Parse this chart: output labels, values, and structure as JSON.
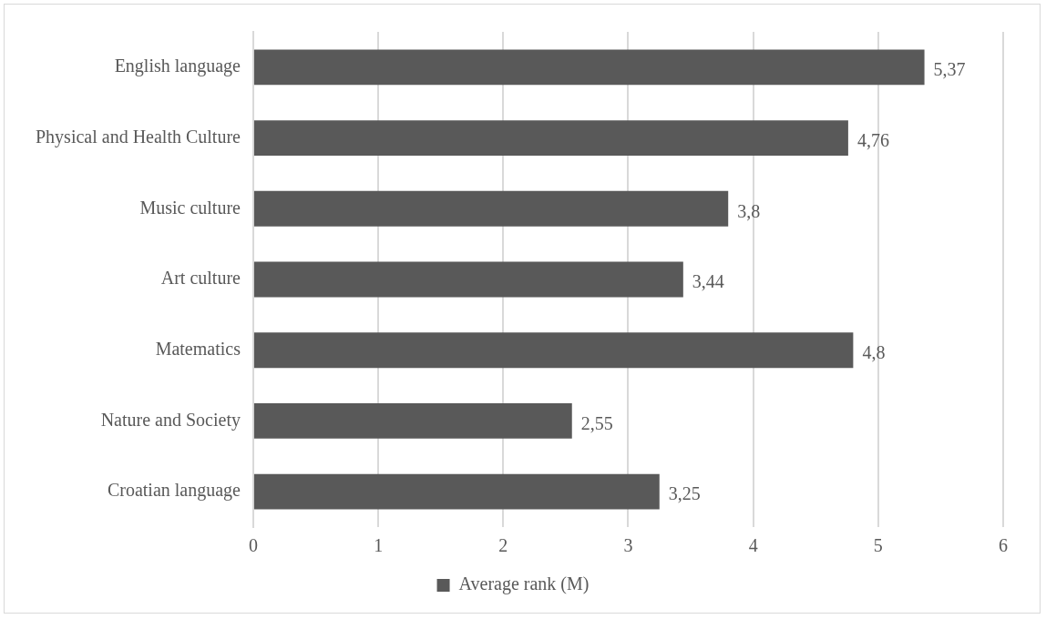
{
  "chart_data": {
    "type": "bar",
    "orientation": "horizontal",
    "categories": [
      "English language",
      "Physical and Health Culture",
      "Music culture",
      "Art culture",
      "Matematics",
      "Nature and Society",
      "Croatian language"
    ],
    "series": [
      {
        "name": "Average rank (M)",
        "color": "#595959",
        "values": [
          5.37,
          4.76,
          3.8,
          3.44,
          4.8,
          2.55,
          3.25
        ],
        "value_labels": [
          "5,37",
          "4,76",
          "3,8",
          "3,44",
          "4,8",
          "2,55",
          "3,25"
        ]
      }
    ],
    "xlim": [
      0,
      6
    ],
    "xticks": [
      0,
      1,
      2,
      3,
      4,
      5,
      6
    ],
    "grid": "x",
    "legend": "bottom"
  }
}
